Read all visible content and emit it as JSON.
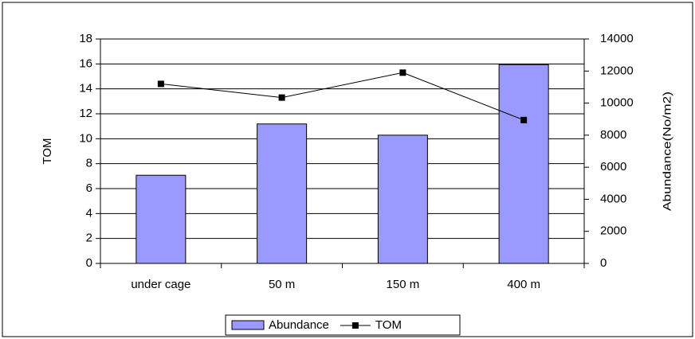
{
  "chart_data": {
    "type": "bar-line",
    "categories": [
      "under cage",
      "50 m",
      "150 m",
      "400 m"
    ],
    "series": [
      {
        "name": "Abundance",
        "type": "bar",
        "axis": "y2",
        "color": "#9999ff",
        "values": [
          5500,
          8700,
          8000,
          12400
        ]
      },
      {
        "name": "TOM",
        "type": "line",
        "axis": "y",
        "color": "#000000",
        "values": [
          14.4,
          13.3,
          15.3,
          11.5
        ]
      }
    ],
    "ylabel": "TOM",
    "y2label": "Abundance(No/m2)",
    "ylim": [
      0,
      18
    ],
    "yticks": [
      0,
      2,
      4,
      6,
      8,
      10,
      12,
      14,
      16,
      18
    ],
    "y2lim": [
      0,
      14000
    ],
    "y2ticks": [
      0,
      2000,
      4000,
      6000,
      8000,
      10000,
      12000,
      14000
    ],
    "grid": true,
    "legend": "bottom"
  }
}
